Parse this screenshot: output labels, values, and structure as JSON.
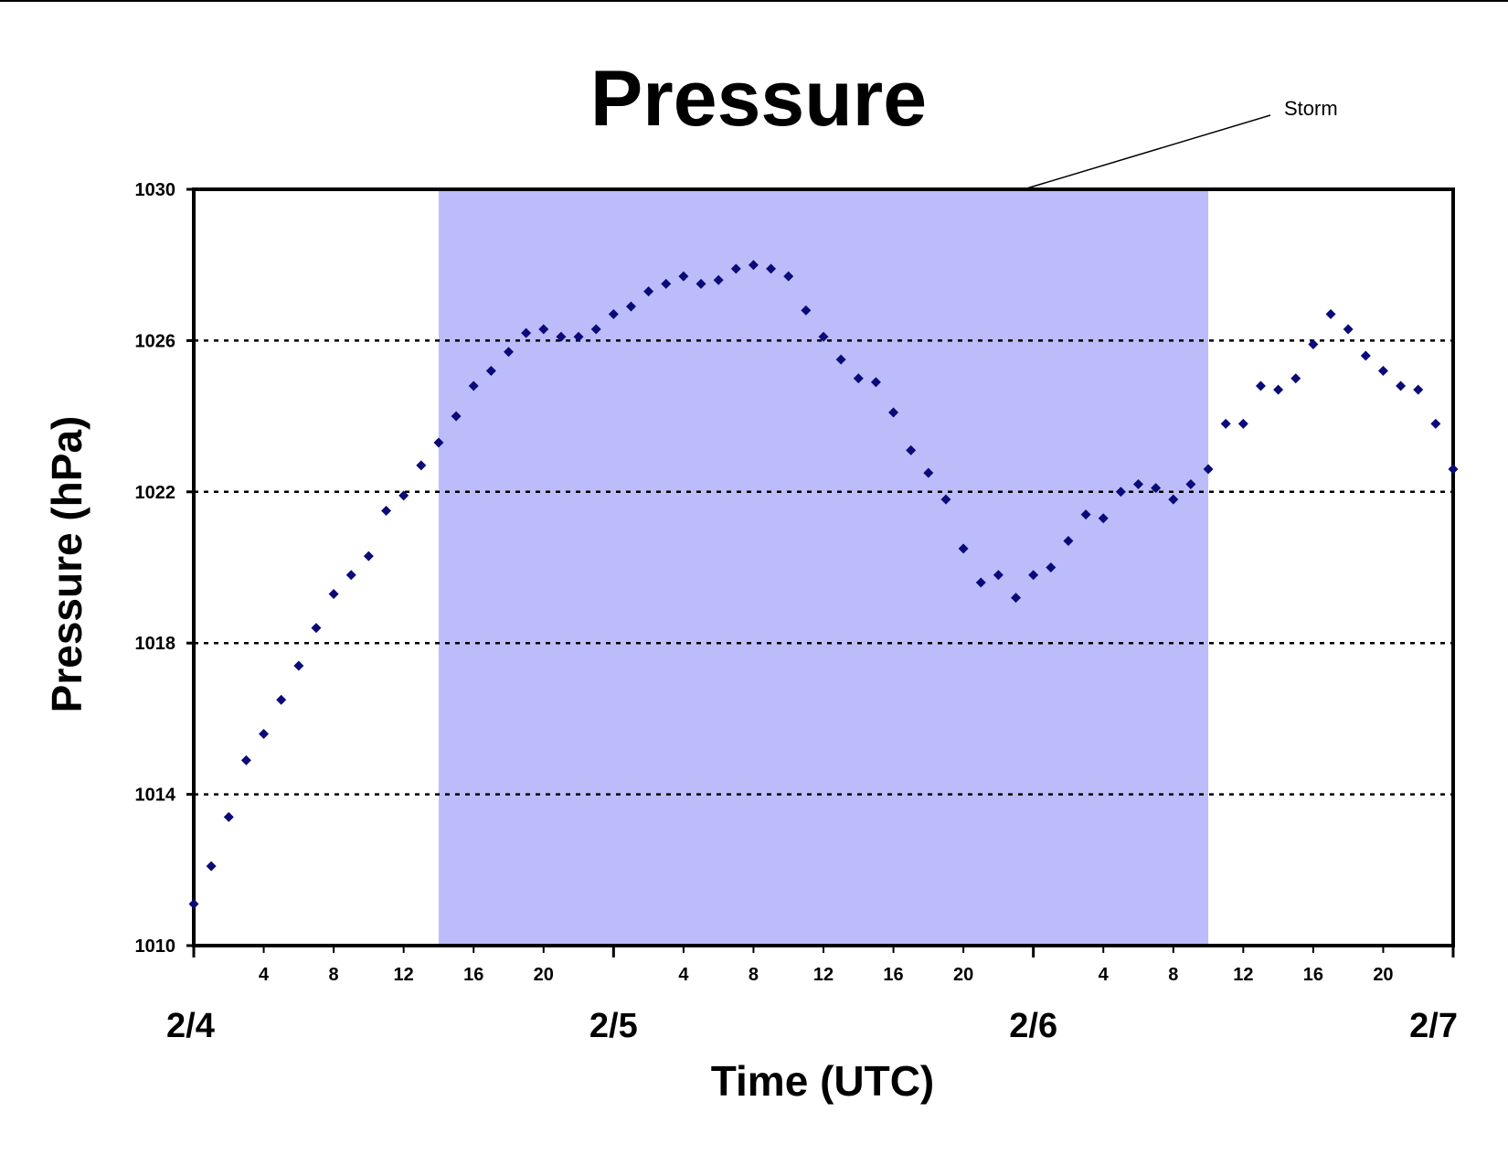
{
  "chart_data": {
    "type": "scatter",
    "title": "Pressure",
    "xlabel": "Time (UTC)",
    "ylabel": "Pressure (hPa)",
    "ylim": [
      1010,
      1030
    ],
    "xlim": [
      "2/4 00",
      "2/7 00"
    ],
    "grid": "dotted horizontal lines at 1014, 1018, 1022, 1026",
    "y_ticks": [
      "1010",
      "1014",
      "1018",
      "1022",
      "1026",
      "1030"
    ],
    "x_hour_ticks": [
      {
        "day": "2/4",
        "hour": 4,
        "label": "4"
      },
      {
        "day": "2/4",
        "hour": 8,
        "label": "8"
      },
      {
        "day": "2/4",
        "hour": 12,
        "label": "12"
      },
      {
        "day": "2/4",
        "hour": 16,
        "label": "16"
      },
      {
        "day": "2/4",
        "hour": 20,
        "label": "20"
      },
      {
        "day": "2/5",
        "hour": 4,
        "label": "4"
      },
      {
        "day": "2/5",
        "hour": 8,
        "label": "8"
      },
      {
        "day": "2/5",
        "hour": 12,
        "label": "12"
      },
      {
        "day": "2/5",
        "hour": 16,
        "label": "16"
      },
      {
        "day": "2/5",
        "hour": 20,
        "label": "20"
      },
      {
        "day": "2/6",
        "hour": 4,
        "label": "4"
      },
      {
        "day": "2/6",
        "hour": 8,
        "label": "8"
      },
      {
        "day": "2/6",
        "hour": 12,
        "label": "12"
      },
      {
        "day": "2/6",
        "hour": 16,
        "label": "16"
      },
      {
        "day": "2/6",
        "hour": 20,
        "label": "20"
      }
    ],
    "x_day_labels": [
      {
        "day": "2/4",
        "label": "2/4"
      },
      {
        "day": "2/5",
        "label": "2/5"
      },
      {
        "day": "2/6",
        "label": "2/6"
      },
      {
        "day": "2/7",
        "label": "2/7"
      }
    ],
    "shaded_region": {
      "label": "Storm",
      "start": [
        "2/4",
        14
      ],
      "end": [
        "2/6",
        10
      ],
      "color": "#bcbcfa"
    },
    "series": [
      {
        "color": "#0a0a78",
        "marker": "diamond",
        "points": [
          [
            "2/4",
            0,
            1011.1
          ],
          [
            "2/4",
            1,
            1012.1
          ],
          [
            "2/4",
            2,
            1013.4
          ],
          [
            "2/4",
            3,
            1014.9
          ],
          [
            "2/4",
            4,
            1015.6
          ],
          [
            "2/4",
            5,
            1016.5
          ],
          [
            "2/4",
            6,
            1017.4
          ],
          [
            "2/4",
            7,
            1018.4
          ],
          [
            "2/4",
            8,
            1019.3
          ],
          [
            "2/4",
            9,
            1019.8
          ],
          [
            "2/4",
            10,
            1020.3
          ],
          [
            "2/4",
            11,
            1021.5
          ],
          [
            "2/4",
            12,
            1021.9
          ],
          [
            "2/4",
            13,
            1022.7
          ],
          [
            "2/4",
            14,
            1023.3
          ],
          [
            "2/4",
            15,
            1024.0
          ],
          [
            "2/4",
            16,
            1024.8
          ],
          [
            "2/4",
            17,
            1025.2
          ],
          [
            "2/4",
            18,
            1025.7
          ],
          [
            "2/4",
            19,
            1026.2
          ],
          [
            "2/4",
            20,
            1026.3
          ],
          [
            "2/4",
            21,
            1026.1
          ],
          [
            "2/4",
            22,
            1026.1
          ],
          [
            "2/4",
            23,
            1026.3
          ],
          [
            "2/5",
            0,
            1026.7
          ],
          [
            "2/5",
            1,
            1026.9
          ],
          [
            "2/5",
            2,
            1027.3
          ],
          [
            "2/5",
            3,
            1027.5
          ],
          [
            "2/5",
            4,
            1027.7
          ],
          [
            "2/5",
            5,
            1027.5
          ],
          [
            "2/5",
            6,
            1027.6
          ],
          [
            "2/5",
            7,
            1027.9
          ],
          [
            "2/5",
            8,
            1028.0
          ],
          [
            "2/5",
            9,
            1027.9
          ],
          [
            "2/5",
            10,
            1027.7
          ],
          [
            "2/5",
            11,
            1026.8
          ],
          [
            "2/5",
            12,
            1026.1
          ],
          [
            "2/5",
            13,
            1025.5
          ],
          [
            "2/5",
            14,
            1025.0
          ],
          [
            "2/5",
            15,
            1024.9
          ],
          [
            "2/5",
            16,
            1024.1
          ],
          [
            "2/5",
            17,
            1023.1
          ],
          [
            "2/5",
            18,
            1022.5
          ],
          [
            "2/5",
            19,
            1021.8
          ],
          [
            "2/5",
            20,
            1020.5
          ],
          [
            "2/5",
            21,
            1019.6
          ],
          [
            "2/5",
            22,
            1019.8
          ],
          [
            "2/5",
            23,
            1019.2
          ],
          [
            "2/6",
            0,
            1019.8
          ],
          [
            "2/6",
            1,
            1020.0
          ],
          [
            "2/6",
            2,
            1020.7
          ],
          [
            "2/6",
            3,
            1021.4
          ],
          [
            "2/6",
            4,
            1021.3
          ],
          [
            "2/6",
            5,
            1022.0
          ],
          [
            "2/6",
            6,
            1022.2
          ],
          [
            "2/6",
            7,
            1022.1
          ],
          [
            "2/6",
            8,
            1021.8
          ],
          [
            "2/6",
            9,
            1022.2
          ],
          [
            "2/6",
            10,
            1022.6
          ],
          [
            "2/6",
            11,
            1023.8
          ],
          [
            "2/6",
            12,
            1023.8
          ],
          [
            "2/6",
            13,
            1024.8
          ],
          [
            "2/6",
            14,
            1024.7
          ],
          [
            "2/6",
            15,
            1025.0
          ],
          [
            "2/6",
            16,
            1025.9
          ],
          [
            "2/6",
            17,
            1026.7
          ],
          [
            "2/6",
            18,
            1026.3
          ],
          [
            "2/6",
            19,
            1025.6
          ],
          [
            "2/6",
            20,
            1025.2
          ],
          [
            "2/6",
            21,
            1024.8
          ],
          [
            "2/6",
            22,
            1024.7
          ],
          [
            "2/6",
            23,
            1023.8
          ],
          [
            "2/7",
            0,
            1022.6
          ]
        ]
      }
    ]
  }
}
